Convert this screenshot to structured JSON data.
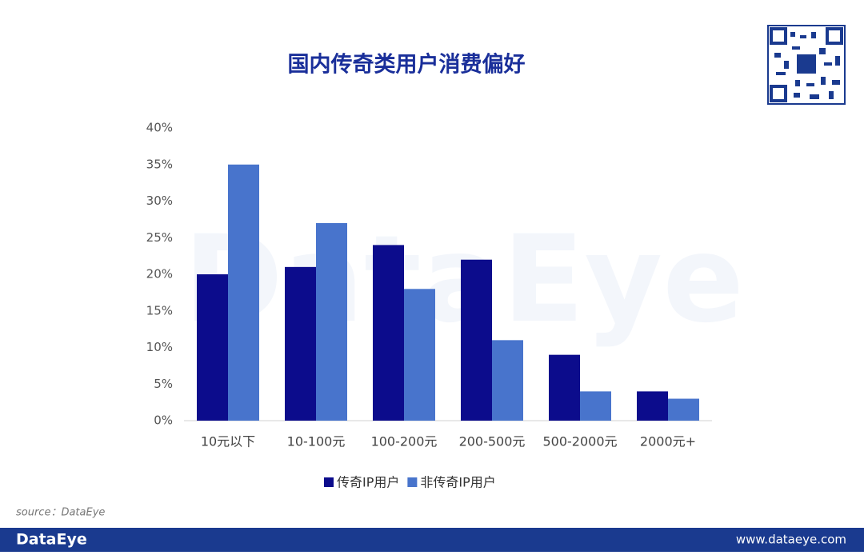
{
  "chart_data": {
    "type": "bar",
    "title": "国内传奇类用户消费偏好",
    "categories": [
      "10元以下",
      "10-100元",
      "100-200元",
      "200-500元",
      "500-2000元",
      "2000元+"
    ],
    "series": [
      {
        "name": "传奇IP用户",
        "color": "#0c0c8c",
        "values": [
          20,
          21,
          24,
          22,
          9,
          4
        ]
      },
      {
        "name": "非传奇IP用户",
        "color": "#4874cc",
        "values": [
          35,
          27,
          18,
          11,
          4,
          3
        ]
      }
    ],
    "ylim": [
      0,
      40
    ],
    "yticks": [
      {
        "value": 0,
        "label": "0%"
      },
      {
        "value": 5,
        "label": "5%"
      },
      {
        "value": 10,
        "label": "10%"
      },
      {
        "value": 15,
        "label": "15%"
      },
      {
        "value": 20,
        "label": "20%"
      },
      {
        "value": 25,
        "label": "25%"
      },
      {
        "value": 30,
        "label": "30%"
      },
      {
        "value": 35,
        "label": "35%"
      },
      {
        "value": 40,
        "label": "40%"
      }
    ],
    "grid": false,
    "legend": "bottom"
  },
  "watermark": "DataEye",
  "source": "source：DataEye",
  "footer": {
    "brand": "DataEye",
    "url": "www.dataeye.com"
  }
}
